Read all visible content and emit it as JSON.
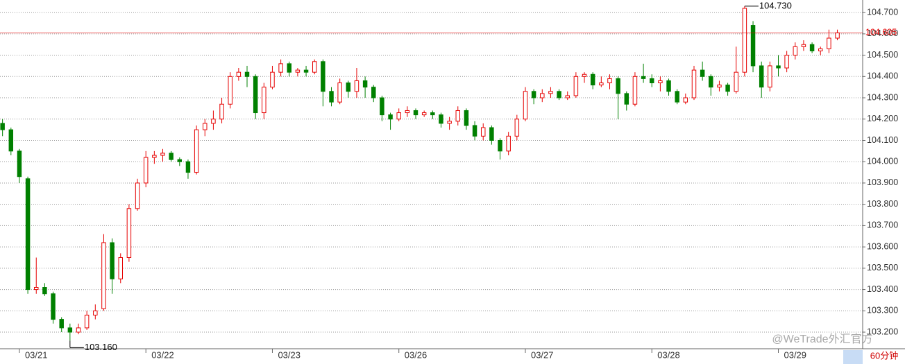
{
  "chart_data": {
    "type": "candlestick",
    "categories": [
      null,
      null,
      "03/21",
      null,
      null,
      null,
      null,
      null,
      null,
      null,
      null,
      null,
      null,
      null,
      null,
      null,
      null,
      "03/22",
      null,
      null,
      null,
      null,
      null,
      null,
      null,
      null,
      null,
      null,
      null,
      null,
      null,
      null,
      "03/23",
      null,
      null,
      null,
      null,
      null,
      null,
      null,
      null,
      null,
      null,
      null,
      null,
      null,
      null,
      "03/26",
      null,
      null,
      null,
      null,
      null,
      null,
      null,
      null,
      null,
      null,
      null,
      null,
      null,
      null,
      "03/27",
      null,
      null,
      null,
      null,
      null,
      null,
      null,
      null,
      null,
      null,
      null,
      null,
      null,
      null,
      "03/28",
      null,
      null,
      null,
      null,
      null,
      null,
      null,
      null,
      null,
      null,
      null,
      null,
      null,
      null,
      "03/29",
      null,
      null,
      null,
      null,
      null,
      null,
      null
    ],
    "open": [
      104.18,
      104.15,
      104.05,
      103.92,
      103.4,
      103.41,
      103.38,
      103.26,
      103.22,
      103.2,
      103.22,
      103.28,
      103.31,
      103.62,
      103.45,
      103.55,
      103.78,
      103.9,
      104.02,
      104.03,
      104.04,
      104.01,
      104.0,
      103.95,
      104.15,
      104.18,
      104.2,
      104.27,
      104.4,
      104.42,
      104.4,
      104.23,
      104.35,
      104.42,
      104.46,
      104.42,
      104.43,
      104.42,
      104.47,
      104.33,
      104.28,
      104.37,
      104.33,
      104.38,
      104.35,
      104.3,
      104.22,
      104.2,
      104.23,
      104.24,
      104.22,
      104.23,
      104.22,
      104.18,
      104.19,
      104.24,
      104.17,
      104.12,
      104.16,
      104.1,
      104.05,
      104.12,
      104.2,
      104.33,
      104.3,
      104.32,
      104.33,
      104.3,
      104.31,
      104.4,
      104.41,
      104.36,
      104.37,
      104.39,
      104.32,
      104.27,
      104.4,
      104.39,
      104.37,
      104.38,
      104.33,
      104.28,
      104.3,
      104.43,
      104.4,
      104.35,
      104.36,
      104.33,
      104.42,
      104.64,
      104.45,
      104.35,
      104.45,
      104.44,
      104.5,
      104.54,
      104.55,
      104.52,
      104.53,
      104.58
    ],
    "high": [
      104.2,
      104.16,
      104.06,
      103.93,
      103.55,
      103.43,
      103.39,
      103.27,
      103.24,
      103.24,
      103.3,
      103.33,
      103.66,
      103.64,
      103.57,
      103.8,
      103.92,
      104.05,
      104.05,
      104.06,
      104.05,
      104.02,
      104.01,
      104.17,
      104.2,
      104.24,
      104.3,
      104.42,
      104.44,
      104.45,
      104.41,
      104.37,
      104.45,
      104.48,
      104.47,
      104.44,
      104.45,
      104.48,
      104.48,
      104.35,
      104.39,
      104.38,
      104.44,
      104.4,
      104.36,
      104.31,
      104.23,
      104.25,
      104.26,
      104.25,
      104.24,
      104.24,
      104.23,
      104.21,
      104.26,
      104.25,
      104.19,
      104.18,
      104.17,
      104.11,
      104.14,
      104.22,
      104.35,
      104.34,
      104.34,
      104.35,
      104.34,
      104.33,
      104.42,
      104.42,
      104.42,
      104.4,
      104.41,
      104.4,
      104.33,
      104.42,
      104.46,
      104.41,
      104.4,
      104.39,
      104.34,
      104.32,
      104.45,
      104.47,
      104.41,
      104.38,
      104.37,
      104.54,
      104.73,
      104.66,
      104.47,
      104.47,
      104.5,
      104.52,
      104.56,
      104.57,
      104.56,
      104.54,
      104.62,
      104.62
    ],
    "low": [
      104.12,
      104.03,
      103.9,
      103.38,
      103.38,
      103.37,
      103.24,
      103.2,
      103.16,
      103.19,
      103.21,
      103.26,
      103.3,
      103.38,
      103.43,
      103.53,
      103.77,
      103.88,
      103.99,
      104.0,
      104.0,
      103.98,
      103.92,
      103.94,
      104.12,
      104.15,
      104.18,
      104.25,
      104.38,
      104.35,
      104.2,
      104.2,
      104.34,
      104.4,
      104.4,
      104.4,
      104.4,
      104.41,
      104.26,
      104.26,
      104.27,
      104.3,
      104.3,
      104.3,
      104.28,
      104.19,
      104.15,
      104.19,
      104.21,
      104.2,
      104.21,
      104.2,
      104.16,
      104.15,
      104.17,
      104.15,
      104.1,
      104.1,
      104.08,
      104.01,
      104.03,
      104.1,
      104.19,
      104.27,
      104.28,
      104.3,
      104.29,
      104.29,
      104.3,
      104.37,
      104.34,
      104.35,
      104.34,
      104.2,
      104.24,
      104.26,
      104.37,
      104.35,
      104.33,
      104.31,
      104.27,
      104.27,
      104.29,
      104.38,
      104.31,
      104.33,
      104.31,
      104.32,
      104.4,
      104.42,
      104.3,
      104.33,
      104.4,
      104.42,
      104.48,
      104.52,
      104.51,
      104.5,
      104.51,
      104.57
    ],
    "close": [
      104.15,
      104.05,
      103.93,
      103.4,
      103.41,
      103.38,
      103.26,
      103.22,
      103.2,
      103.22,
      103.28,
      103.3,
      103.62,
      103.45,
      103.55,
      103.78,
      103.9,
      104.02,
      104.03,
      104.04,
      104.01,
      104.0,
      103.95,
      104.15,
      104.18,
      104.2,
      104.27,
      104.4,
      104.42,
      104.4,
      104.23,
      104.35,
      104.42,
      104.46,
      104.42,
      104.43,
      104.42,
      104.47,
      104.33,
      104.28,
      104.37,
      104.33,
      104.38,
      104.35,
      104.3,
      104.22,
      104.2,
      104.23,
      104.24,
      104.22,
      104.23,
      104.22,
      104.18,
      104.19,
      104.24,
      104.17,
      104.12,
      104.16,
      104.1,
      104.05,
      104.12,
      104.2,
      104.33,
      104.3,
      104.32,
      104.33,
      104.3,
      104.31,
      104.4,
      104.41,
      104.36,
      104.37,
      104.39,
      104.32,
      104.27,
      104.4,
      104.39,
      104.37,
      104.38,
      104.33,
      104.28,
      104.3,
      104.43,
      104.4,
      104.35,
      104.36,
      104.33,
      104.42,
      104.72,
      104.45,
      104.35,
      104.45,
      104.44,
      104.5,
      104.54,
      104.55,
      104.52,
      104.53,
      104.58,
      104.605
    ],
    "up_color": "#e60000",
    "down_color": "#008000",
    "ylim": [
      103.122,
      104.759
    ],
    "yticks": [
      {
        "value": 103.2,
        "label": "103.200"
      },
      {
        "value": 103.3,
        "label": "103.300"
      },
      {
        "value": 103.4,
        "label": "103.400"
      },
      {
        "value": 103.5,
        "label": "103.500"
      },
      {
        "value": 103.6,
        "label": "103.600"
      },
      {
        "value": 103.7,
        "label": "103.700"
      },
      {
        "value": 103.8,
        "label": "103.800"
      },
      {
        "value": 103.9,
        "label": "103.900"
      },
      {
        "value": 104.0,
        "label": "104.000"
      },
      {
        "value": 104.1,
        "label": "104.100"
      },
      {
        "value": 104.2,
        "label": "104.200"
      },
      {
        "value": 104.3,
        "label": "104.300"
      },
      {
        "value": 104.4,
        "label": "104.400"
      },
      {
        "value": 104.5,
        "label": "104.500"
      },
      {
        "value": 104.6,
        "label": "104.600"
      },
      {
        "value": 104.7,
        "label": "104.700"
      }
    ],
    "grid": true,
    "annotations": [
      {
        "value": 104.73,
        "label": "104.730"
      },
      {
        "value": 103.16,
        "label": "103.160"
      }
    ],
    "last_price": {
      "value": 104.605,
      "label": "104.605"
    },
    "period": "60分钟",
    "watermark": "@WeTrade外汇官方"
  }
}
